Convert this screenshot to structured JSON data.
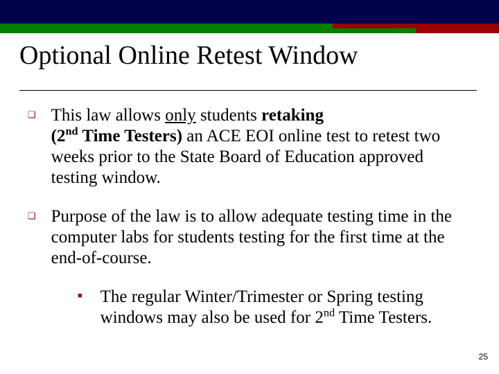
{
  "theme": {
    "navy": "#00004a",
    "green": "#008000",
    "maroon": "#9a0000",
    "bullet_color": "#990033",
    "text_color": "#000000",
    "background": "#ffffff",
    "title_fontsize": 38,
    "body_fontsize": 25,
    "font_family": "Times New Roman"
  },
  "title": "Optional Online Retest Window",
  "bullets": {
    "b1": {
      "pre": "This law allows ",
      "only": "only",
      "mid1": " students ",
      "retaking": "retaking",
      "line2_open": "(2",
      "nd": "nd",
      "line2_rest": " Time Testers)",
      "rest": " an ACE EOI online test to retest two weeks prior to the State Board of Education approved testing window."
    },
    "b2": "Purpose of the law is to allow adequate testing time in the computer labs for students testing for the first time at the end-of-course.",
    "sub": {
      "pre": "The regular Winter/Trimester or Spring testing windows may also be used for 2",
      "nd": "nd",
      "post": " Time Testers."
    }
  },
  "page_number": "25"
}
